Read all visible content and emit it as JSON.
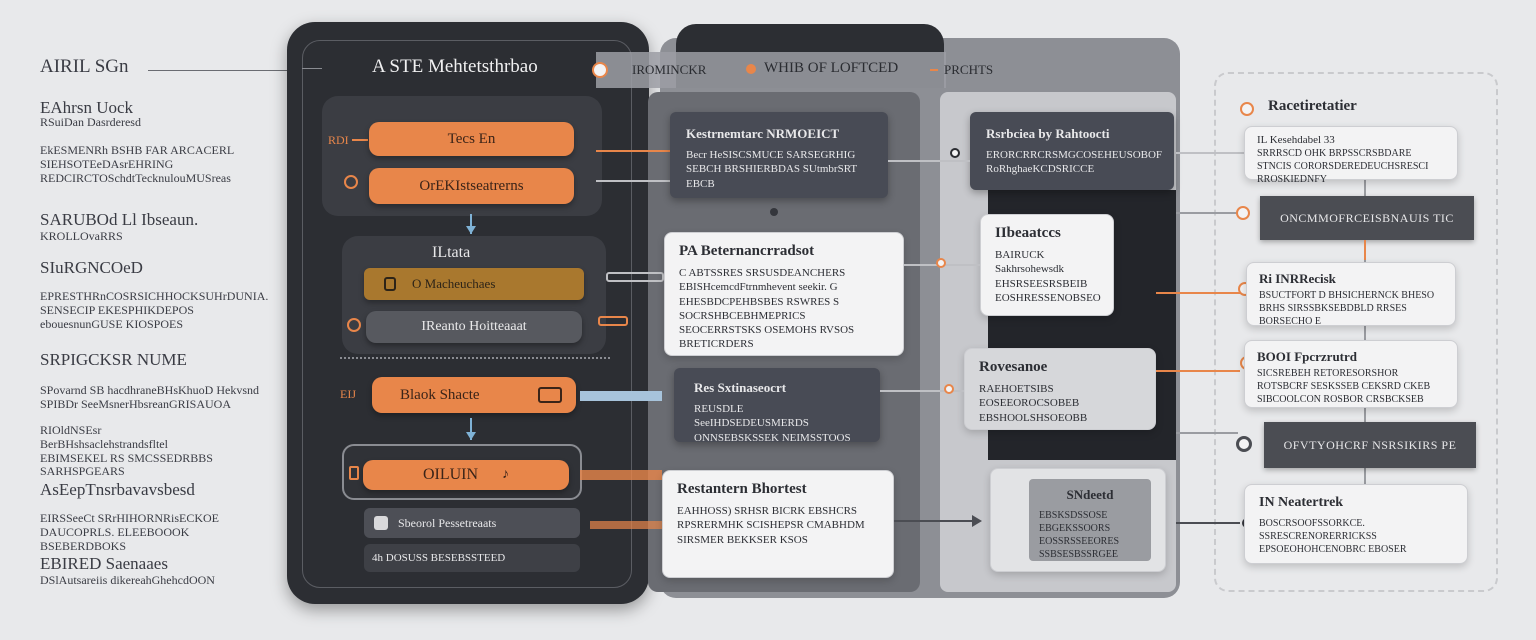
{
  "legend": {
    "title": "AIRIL SGn",
    "items": [
      {
        "heading": "EAhrsn Uock",
        "text": "RSuiDan Dasrderesd"
      },
      {
        "heading": "",
        "text": "EkESMENRh BSHB FAR ARCACERL SIEHSOTEeDAsrEHRING REDCIRCTOSchdtTecknulouMUSreas"
      },
      {
        "heading": "SARUBOd Ll Ibseaun.",
        "text": "KROLLOvaRRS"
      },
      {
        "heading": "SIuRGNCOeD",
        "text": "EPRESTHRnCOSRSICHHOCKSUHrDUNIA. SENSECIP EKESPHIKDEPOS ebouesnunGUSE KIOSPOES"
      },
      {
        "heading": "SRPIGCKSR NUME",
        "text": "SPovarnd SB hacdhraneBHsKhuoD Hekvsnd SPIBDr SeeMsnerHbsreanGRISAUOA"
      },
      {
        "heading": "",
        "text": "RIOldNSEsr BerBHshsaclehstrandsfltel EBIMSEKEL RS SMCSSEDRBBS SARHSPGEARS"
      },
      {
        "heading": "AsEepTnsrbavavsbesd",
        "text": ""
      },
      {
        "heading": "",
        "text": "EIRSSeeCt SRrHIHORNRisECKOE DAUCOPRLS. ELEEBOOOK BSEBERDBOKS"
      },
      {
        "heading": "EBIRED Saenaaes",
        "text": "DSlAutsareiis dikereahGhehcdOON"
      }
    ]
  },
  "phone": {
    "title": "A STE Mehtetsthrbao",
    "tag_left": "RDI",
    "btn_tests": "Tecs En",
    "btn_check": "OrEKIstseatrerns",
    "section_title": "ILtata",
    "btn_machine": "O Macheuchaes",
    "btn_refresh": "IReanto Hoitteaaat",
    "tag_left2": "EIJ",
    "btn_black": "Blaok Shacte",
    "btn_oiluin": "OILUIN",
    "row_board": "Sbeorol Pessetreaats",
    "row_disc": "4h DOSUSS BESEBSSTEED"
  },
  "middle": {
    "tab1": "IROMINCKR",
    "tab2": "WHIB OF LOFTCED",
    "tab3": "PRCHTS",
    "card_a": {
      "title": "Kestrnemtarc NRMOEICT",
      "body": "Becr HeSISCSMUCE SARSEGRHIG SEBCH BRSHIERBDAS SUtmbrSRT EBCB"
    },
    "card_b": {
      "title": "PA Beternancrradsot",
      "body": "C ABTSSRES SRSUSDEANCHERS EBISHcemcdFtrnmhevent seekir. G EHESBDCPEHBSBES RSWRES S SOCRSHBCEBHMEPRICS SEOCERRSTSKS OSEMOHS RVSOS BRETICRDERS"
    },
    "card_c": {
      "title": "Res Sxtinaseocrt",
      "body": "REUSDLE SeeIHDSEDEUSMERDS ONNSEBSKSSEK NEIMSSTOOS"
    },
    "card_d": {
      "title": "Restantern Bhortest",
      "body": "EAHHOSS) SRHSR BICRK EBSHCRS RPSRERMHK SCISHEPSR CMABHDM SIRSMER BEKKSER KSOS"
    },
    "card_e": {
      "title": "Rsrbciea by Rahtoocti",
      "body": "ERORCRRCRSMGCOSEHEUSOBOF RoRhghaeKCDSRICCE"
    },
    "card_f": {
      "title": "IIbeaatccs",
      "body": "BAIRUCK Sakhrsohewsdk EHSRSEESRSBEIB EOSHRESSENOBSEO"
    },
    "card_g": {
      "title": "Rovesanoe",
      "body": "RAEHOETSIBS EOSEEOROCSOBEB EBSHOOLSHSOEOBB"
    },
    "card_h": {
      "title": "SNdeetd",
      "body": "EBSKSDSSOSE EBGEKSSOORS EOSSRSSEEORES SSBSESBSSRGEE"
    }
  },
  "right": {
    "card1": {
      "title": "Racetiretatier",
      "sub": "IL Kesehdabel 33",
      "body": "SRRRSCD OHK BRPSSCRSBDARE STNCIS CORORSDEREDEUCHSRESCI RROSKIEDNFY"
    },
    "bar1": "ONCMMOFRCEISBNAUIS TIC",
    "card2": {
      "title": "Ri INRRecisk",
      "body": "BSUCTFORT D BHSICHERNCK BHESO BRHS SIRSSBKSEBDBLD RRSES BORSECHO E"
    },
    "card3": {
      "title": "BOOI Fpcrzrutrd",
      "body": "SICSREBEH RETORESORSHOR ROTSBCRF SESKSSEB CEKSRD CKEB SIBCOOLCON ROSBOR CRSBCKSEB"
    },
    "bar2": "OFVTYOHCRF NSRSIKIRS PE",
    "card4": {
      "title": "IN Neatertrek",
      "body": "BOSCRSOOFSSORKCE. SSRESCRENORERRICKSS EPSOEOHOHCENOBRC EBOSER"
    }
  },
  "colors": {
    "accent": "#e8864a",
    "dark": "#2f3136",
    "panel": "#5c5e65",
    "light": "#f3f3f4"
  }
}
